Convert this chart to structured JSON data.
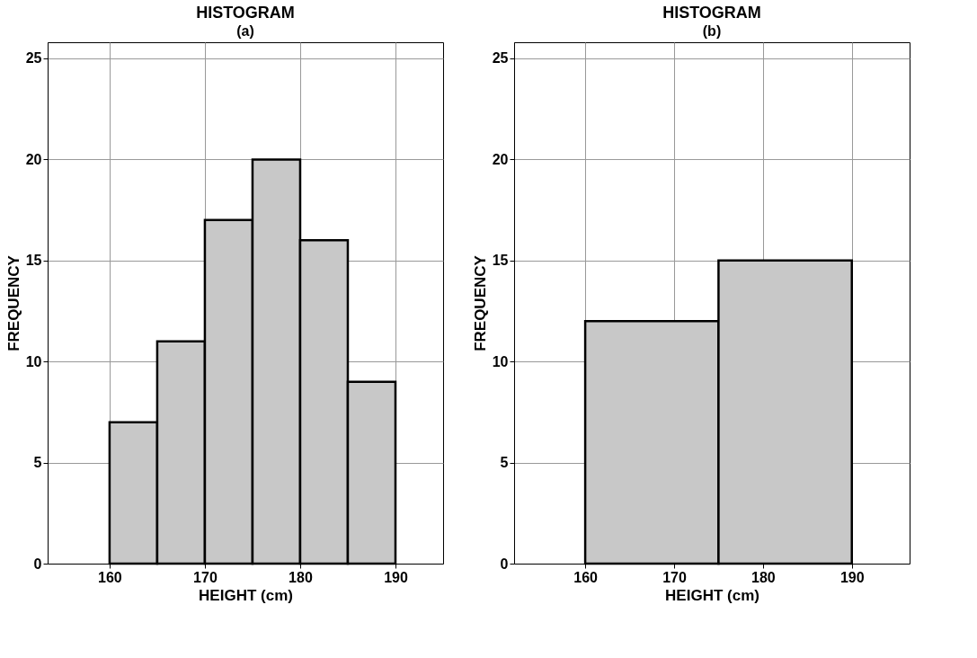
{
  "chart_data": [
    {
      "type": "histogram",
      "title": "HISTOGRAM",
      "subtitle": "(a)",
      "xlabel": "HEIGHT (cm)",
      "ylabel": "FREQUENCY",
      "bins": [
        160,
        165,
        170,
        175,
        180,
        185,
        190
      ],
      "values": [
        7,
        11,
        17,
        20,
        16,
        9
      ],
      "color": "#c8c8c8",
      "xlim": [
        153.5,
        195
      ],
      "xticks": [
        160,
        170,
        180,
        190
      ],
      "ylim": [
        0,
        25.8
      ],
      "yticks": [
        0,
        5,
        10,
        15,
        20,
        25
      ],
      "grid": true
    },
    {
      "type": "histogram",
      "title": "HISTOGRAM",
      "subtitle": "(b)",
      "xlabel": "HEIGHT (cm)",
      "ylabel": "FREQUENCY",
      "bins": [
        160,
        175,
        190
      ],
      "values": [
        12,
        15
      ],
      "color": "#c8c8c8",
      "xlim": [
        152,
        196.5
      ],
      "xticks": [
        160,
        170,
        180,
        190
      ],
      "ylim": [
        0,
        25.8
      ],
      "yticks": [
        0,
        5,
        10,
        15,
        20,
        25
      ],
      "grid": true
    }
  ]
}
